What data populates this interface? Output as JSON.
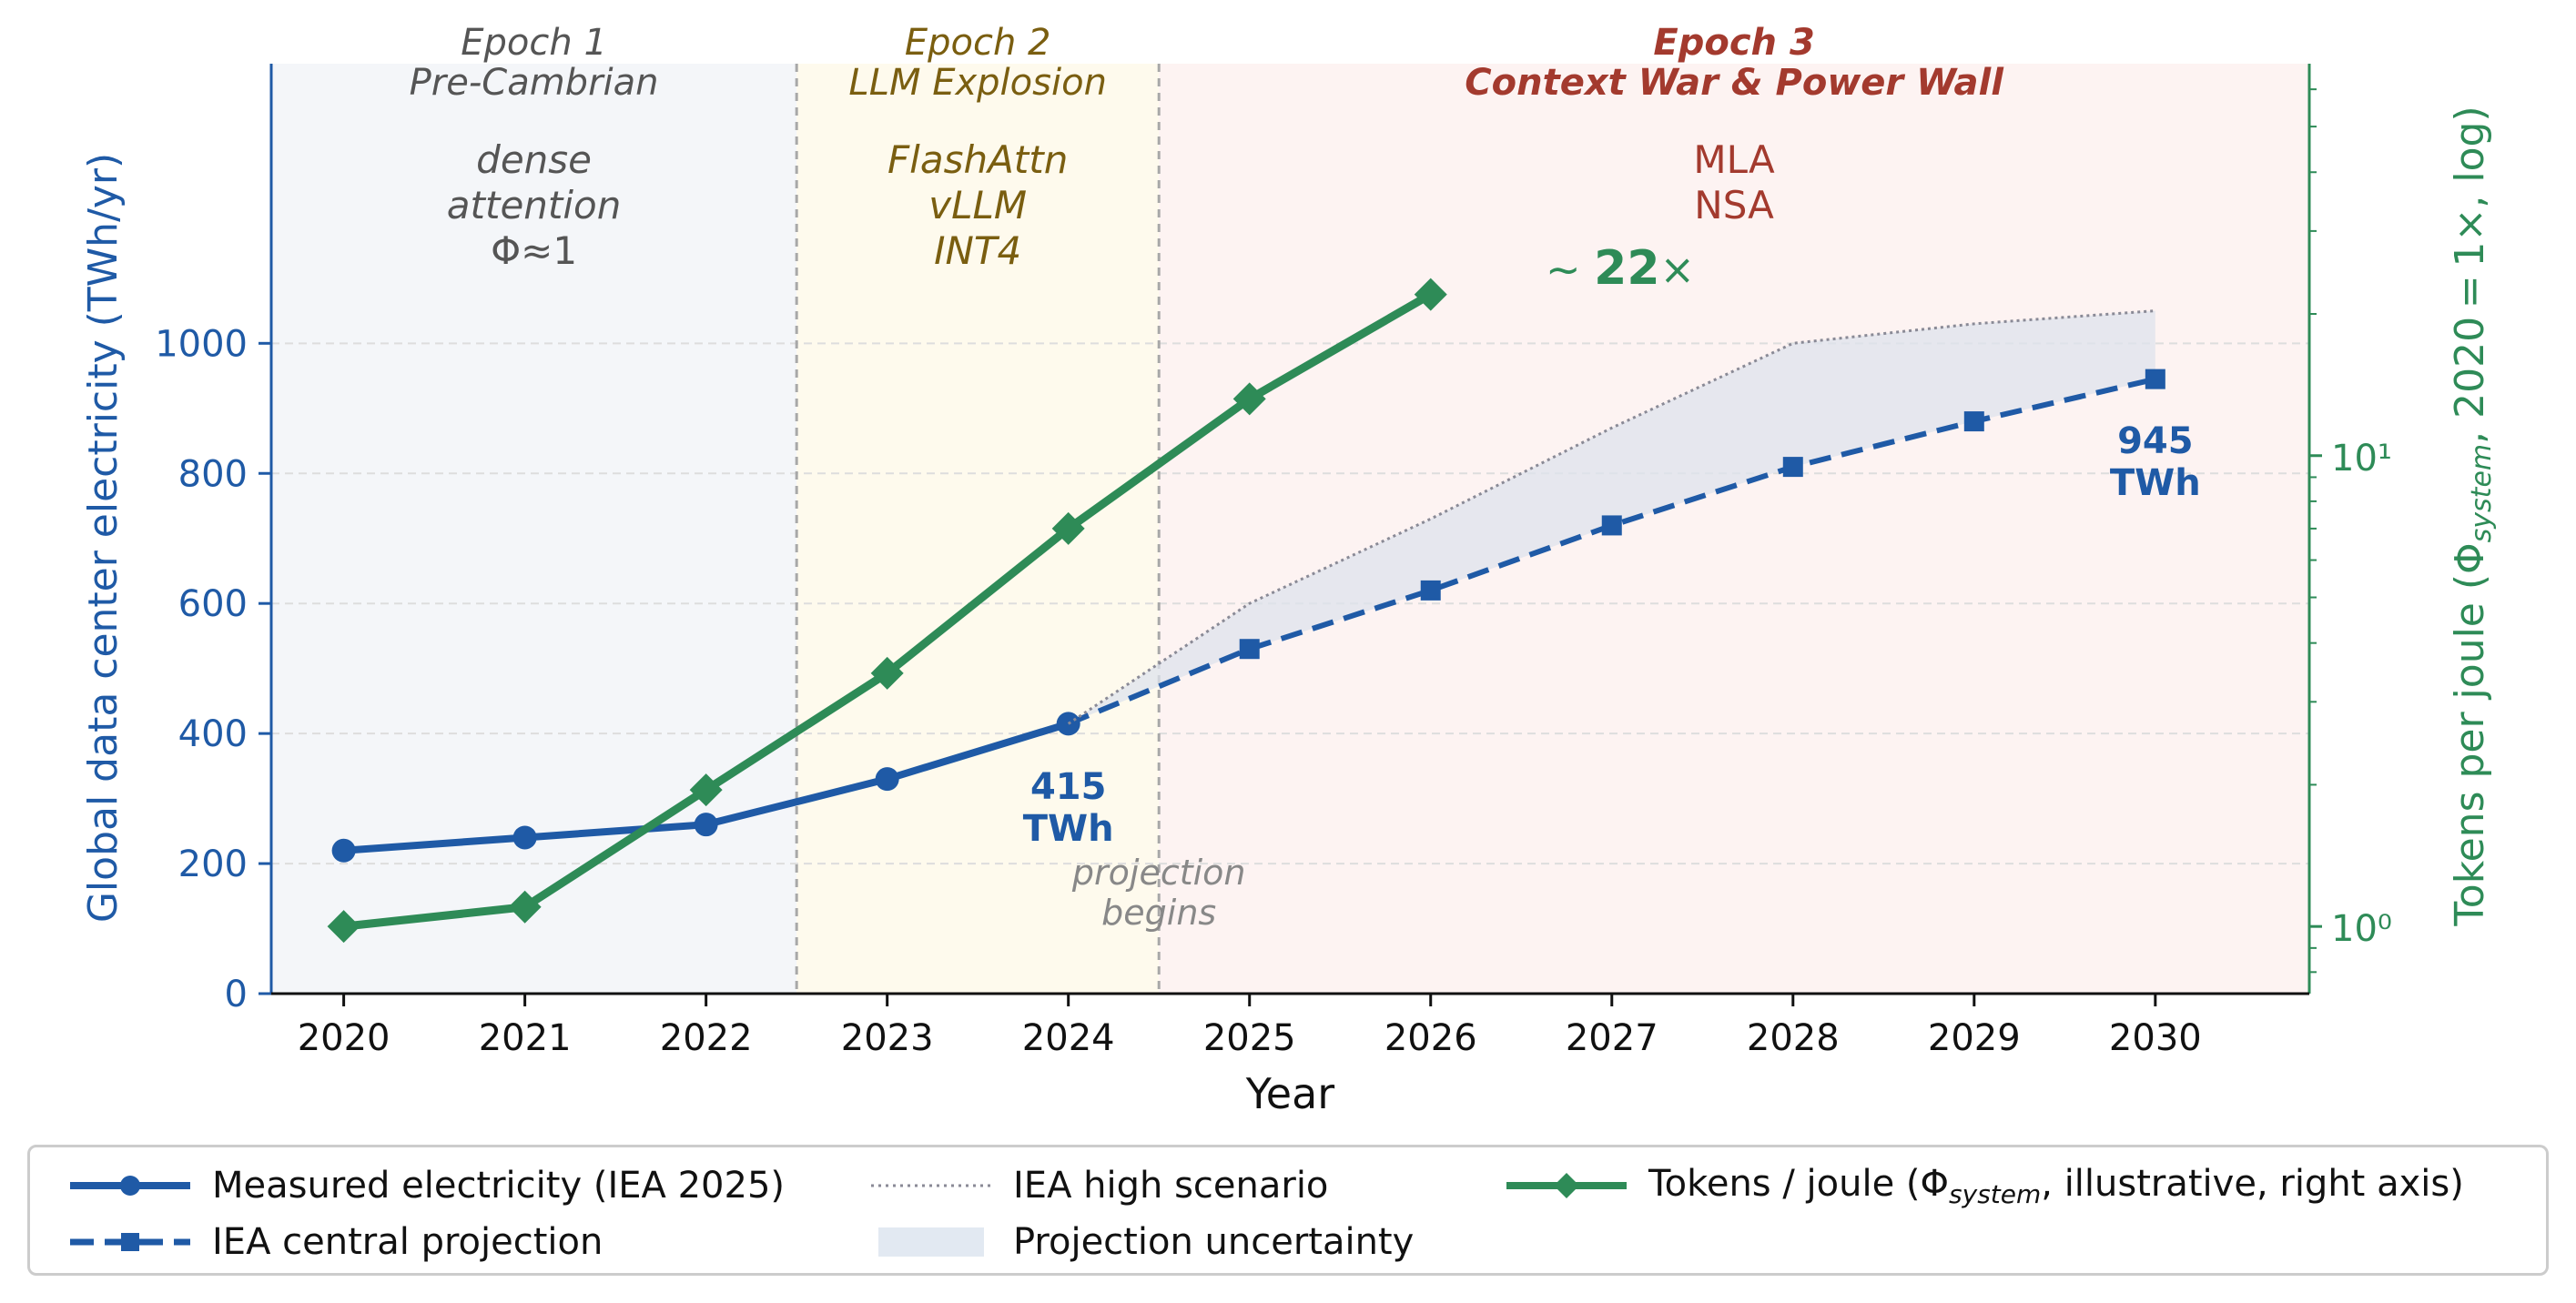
{
  "chart_data": {
    "type": "line",
    "xlabel": "Year",
    "ylabel": "Global data center electricity (TWh/yr)",
    "y2label": "Tokens per joule  (Φ",
    "y2label_sub": "system",
    "y2label_tail": ",  2020 = 1×,  log)",
    "x_ticks": [
      "2020",
      "2021",
      "2022",
      "2023",
      "2024",
      "2025",
      "2026",
      "2027",
      "2028",
      "2029",
      "2030"
    ],
    "y_ticks": [
      "0",
      "200",
      "400",
      "600",
      "800",
      "1000"
    ],
    "y2_ticks": [
      "10⁰",
      "10¹"
    ],
    "xlim": [
      2019.6,
      2030.85
    ],
    "ylim": [
      0,
      1430
    ],
    "y2_scale": "log",
    "y2lim": [
      0.72,
      68
    ],
    "grid": "y dashed",
    "legend_position": "bottom",
    "series": [
      {
        "name": "Measured electricity (IEA 2025)",
        "axis": "left",
        "style": "solid-circle",
        "color": "#1f5aa6",
        "x": [
          2020,
          2021,
          2022,
          2023,
          2024
        ],
        "y": [
          220,
          240,
          260,
          330,
          415
        ]
      },
      {
        "name": "IEA central projection",
        "axis": "left",
        "style": "dashed-square",
        "color": "#1f5aa6",
        "x": [
          2024,
          2025,
          2026,
          2027,
          2028,
          2029,
          2030
        ],
        "y": [
          415,
          530,
          620,
          720,
          810,
          880,
          945
        ]
      },
      {
        "name": "IEA high scenario",
        "axis": "left",
        "style": "dotted",
        "color": "#8a8a96",
        "x": [
          2024,
          2025,
          2026,
          2027,
          2028,
          2029,
          2030
        ],
        "y": [
          415,
          600,
          730,
          870,
          1000,
          1030,
          1050
        ]
      },
      {
        "name": "Projection uncertainty",
        "axis": "left",
        "style": "band",
        "color": "#dde3ec",
        "x": [
          2024,
          2025,
          2026,
          2027,
          2028,
          2029,
          2030
        ],
        "low": [
          415,
          530,
          620,
          720,
          810,
          880,
          945
        ],
        "high": [
          415,
          600,
          730,
          870,
          1000,
          1030,
          1050
        ]
      },
      {
        "name": "Tokens / joule (Φ",
        "name_sub": "system",
        "name_tail": ", illustrative, right axis)",
        "axis": "right",
        "style": "solid-diamond",
        "color": "#2e8b57",
        "x": [
          2020,
          2021,
          2022,
          2023,
          2024,
          2025,
          2026
        ],
        "y": [
          1.0,
          1.1,
          1.95,
          3.45,
          7.0,
          13.2,
          22.0
        ]
      }
    ],
    "epochs": [
      {
        "x0": 2019.6,
        "x1": 2022.5,
        "fill": "#f4f6f9",
        "color": "#555555",
        "bold": false,
        "title": [
          "Epoch 1",
          "Pre-Cambrian"
        ],
        "body": [
          "dense",
          "attention",
          "Φ≈1"
        ],
        "body_italic": [
          true,
          true,
          false
        ]
      },
      {
        "x0": 2022.5,
        "x1": 2024.5,
        "fill": "#fefaed",
        "color": "#7a5e10",
        "bold": false,
        "title": [
          "Epoch 2",
          "LLM Explosion"
        ],
        "body": [
          "FlashAttn",
          "vLLM",
          "INT4"
        ],
        "body_italic": [
          true,
          true,
          true
        ]
      },
      {
        "x0": 2024.5,
        "x1": 2030.85,
        "fill": "#fdf3f2",
        "color": "#a33a2e",
        "bold": true,
        "title": [
          "Epoch 3",
          "Context War & Power Wall"
        ],
        "body": [
          "MLA",
          "NSA"
        ],
        "body_italic": [
          false,
          false
        ]
      }
    ],
    "annotations": {
      "start_value": [
        "415",
        "TWh"
      ],
      "end_value": [
        "945",
        "TWh"
      ],
      "projection": [
        "projection",
        "begins"
      ],
      "multiplier_prefix": "~",
      "multiplier_value": "22",
      "multiplier_suffix": "×"
    }
  },
  "colors": {
    "electricity": "#1f5aa6",
    "tokens": "#2e8b57",
    "high_scenario": "#8a8a96",
    "band": "#dde3ec",
    "legend_band": "#e2e9f2",
    "epoch3_accent": "#a33a2e"
  }
}
